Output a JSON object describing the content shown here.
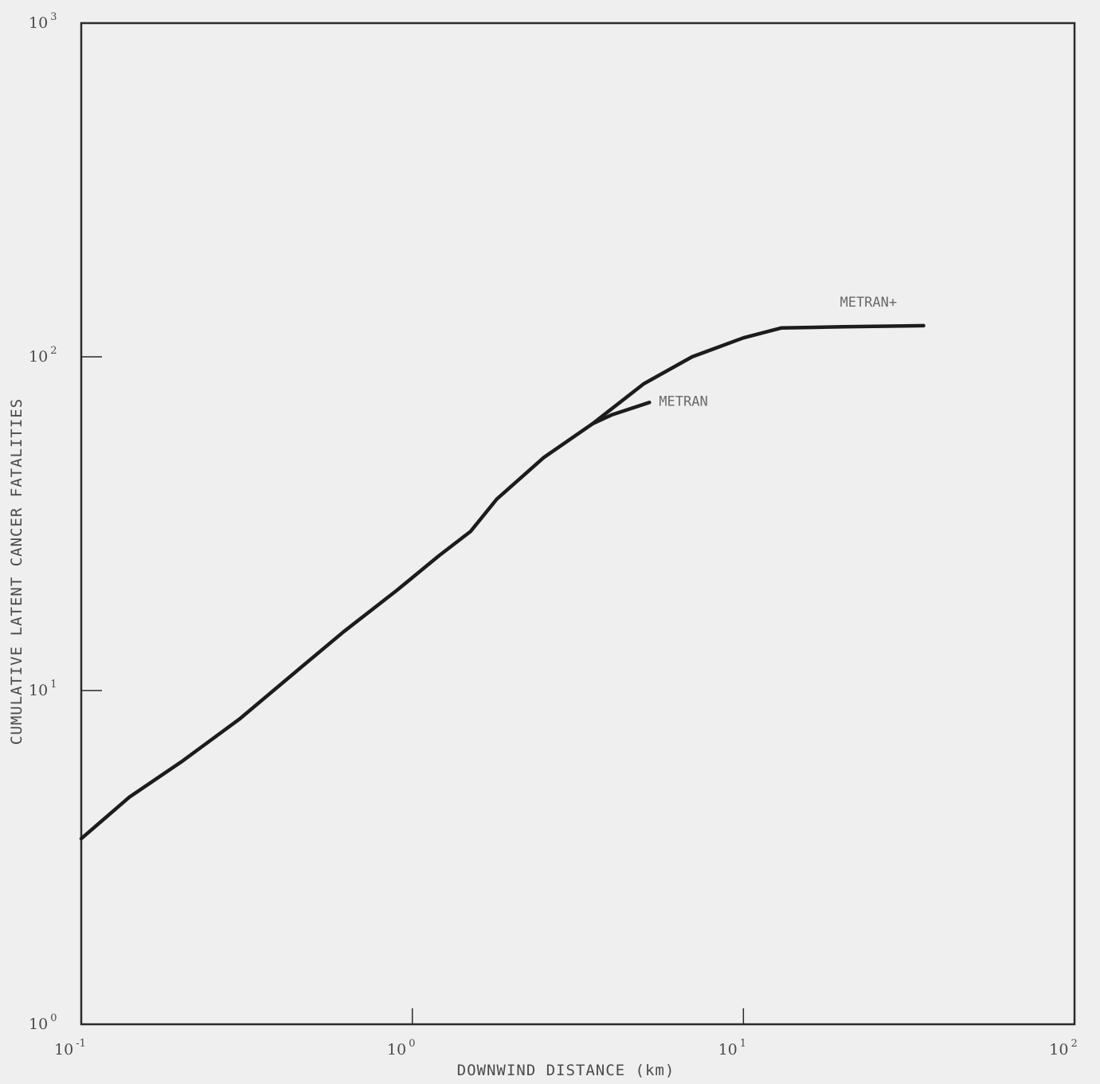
{
  "chart_data": {
    "type": "line",
    "title": "",
    "xlabel": "DOWNWIND DISTANCE (km)",
    "ylabel": "CUMULATIVE LATENT CANCER FATALITIES",
    "x_scale": "log",
    "y_scale": "log",
    "xlim": [
      0.1,
      100
    ],
    "ylim": [
      1,
      1000
    ],
    "x_ticks": [
      {
        "base": "10",
        "exp": "-1"
      },
      {
        "base": "10",
        "exp": "0"
      },
      {
        "base": "10",
        "exp": "1"
      },
      {
        "base": "10",
        "exp": "2"
      }
    ],
    "y_ticks": [
      {
        "base": "10",
        "exp": "0"
      },
      {
        "base": "10",
        "exp": "1"
      },
      {
        "base": "10",
        "exp": "2"
      },
      {
        "base": "10",
        "exp": "3"
      }
    ],
    "grid": false,
    "series": [
      {
        "name": "METRAN+",
        "x": [
          0.1,
          0.14,
          0.2,
          0.3,
          0.45,
          0.62,
          0.9,
          1.2,
          1.5,
          1.8,
          2.5,
          3.5,
          5.0,
          7.0,
          10.0,
          13.0,
          20.0,
          35.0
        ],
        "y": [
          3.6,
          4.8,
          6.1,
          8.2,
          11.5,
          15.0,
          20.0,
          25.3,
          30.0,
          37.5,
          50.0,
          63.0,
          83.0,
          100.0,
          114.0,
          122.0,
          123.0,
          124.0
        ]
      },
      {
        "name": "METRAN",
        "x": [
          3.5,
          4.0,
          5.2
        ],
        "y": [
          63.0,
          67.0,
          73.0
        ]
      }
    ]
  }
}
